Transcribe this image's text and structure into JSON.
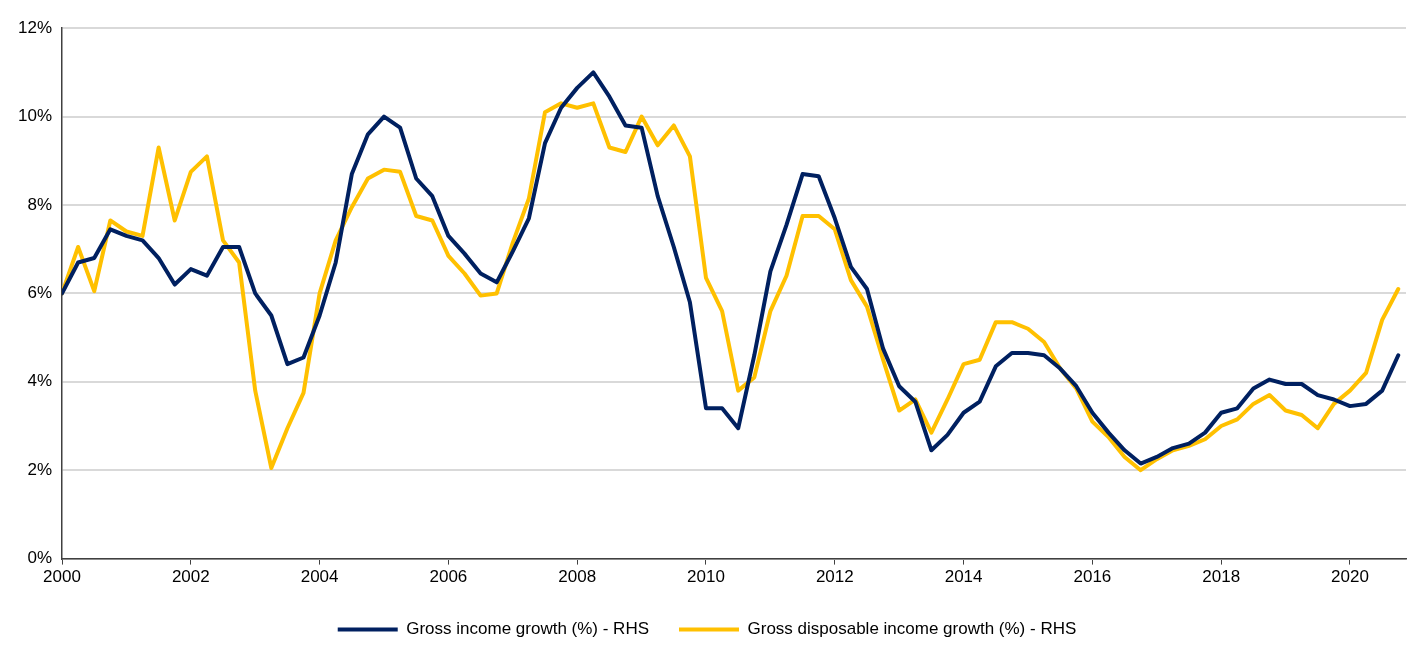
{
  "chart_data": {
    "type": "line",
    "x": [
      2000,
      2000.25,
      2000.5,
      2000.75,
      2001,
      2001.25,
      2001.5,
      2001.75,
      2002,
      2002.25,
      2002.5,
      2002.75,
      2003,
      2003.25,
      2003.5,
      2003.75,
      2004,
      2004.25,
      2004.5,
      2004.75,
      2005,
      2005.25,
      2005.5,
      2005.75,
      2006,
      2006.25,
      2006.5,
      2006.75,
      2007,
      2007.25,
      2007.5,
      2007.75,
      2008,
      2008.25,
      2008.5,
      2008.75,
      2009,
      2009.25,
      2009.5,
      2009.75,
      2010,
      2010.25,
      2010.5,
      2010.75,
      2011,
      2011.25,
      2011.5,
      2011.75,
      2012,
      2012.25,
      2012.5,
      2012.75,
      2013,
      2013.25,
      2013.5,
      2013.75,
      2014,
      2014.25,
      2014.5,
      2014.75,
      2015,
      2015.25,
      2015.5,
      2015.75,
      2016,
      2016.25,
      2016.5,
      2016.75,
      2017,
      2017.25,
      2017.5,
      2017.75,
      2018,
      2018.25,
      2018.5,
      2018.75,
      2019,
      2019.25,
      2019.5,
      2019.75,
      2020,
      2020.25,
      2020.5,
      2020.75
    ],
    "series": [
      {
        "name": "Gross income growth (%) - RHS",
        "color": "#002060",
        "values": [
          6.0,
          6.7,
          6.8,
          7.45,
          7.3,
          7.2,
          6.8,
          6.2,
          6.55,
          6.4,
          7.05,
          7.05,
          6.0,
          5.5,
          4.4,
          4.55,
          5.5,
          6.7,
          8.7,
          9.6,
          10.0,
          9.75,
          8.6,
          8.2,
          7.3,
          6.9,
          6.45,
          6.25,
          6.95,
          7.7,
          9.4,
          10.2,
          10.65,
          11.0,
          10.45,
          9.8,
          9.75,
          8.2,
          7.05,
          5.8,
          3.4,
          3.4,
          2.95,
          4.6,
          6.5,
          7.55,
          8.7,
          8.65,
          7.7,
          6.6,
          6.1,
          4.75,
          3.9,
          3.55,
          2.45,
          2.8,
          3.3,
          3.55,
          4.35,
          4.65,
          4.65,
          4.6,
          4.3,
          3.9,
          3.3,
          2.85,
          2.45,
          2.15,
          2.3,
          2.5,
          2.6,
          2.85,
          3.3,
          3.4,
          3.85,
          4.05,
          3.95,
          3.95,
          3.7,
          3.6,
          3.45,
          3.5,
          3.8,
          4.6
        ]
      },
      {
        "name": "Gross disposable income growth (%) - RHS",
        "color": "#ffc000",
        "values": [
          6.0,
          7.05,
          6.05,
          7.65,
          7.4,
          7.3,
          9.3,
          7.65,
          8.75,
          9.1,
          7.2,
          6.7,
          3.8,
          2.05,
          2.95,
          3.75,
          6.0,
          7.2,
          7.95,
          8.6,
          8.8,
          8.75,
          7.75,
          7.65,
          6.85,
          6.45,
          5.95,
          6.0,
          7.15,
          8.15,
          10.1,
          10.3,
          10.2,
          10.3,
          9.3,
          9.2,
          10.0,
          9.35,
          9.8,
          9.1,
          6.35,
          5.6,
          3.8,
          4.1,
          5.6,
          6.4,
          7.75,
          7.75,
          7.45,
          6.3,
          5.7,
          4.5,
          3.35,
          3.6,
          2.85,
          3.6,
          4.4,
          4.5,
          5.35,
          5.35,
          5.2,
          4.9,
          4.3,
          3.85,
          3.1,
          2.75,
          2.3,
          2.0,
          2.25,
          2.45,
          2.55,
          2.7,
          3.0,
          3.15,
          3.5,
          3.7,
          3.35,
          3.25,
          2.95,
          3.5,
          3.8,
          4.2,
          5.4,
          6.1
        ]
      }
    ],
    "xlim": [
      2000,
      2020.87
    ],
    "xticks": [
      2000,
      2002,
      2004,
      2006,
      2008,
      2010,
      2012,
      2014,
      2016,
      2018,
      2020
    ],
    "ylim": [
      0,
      12
    ],
    "yticks": [
      {
        "value": 0,
        "label": "0%"
      },
      {
        "value": 2,
        "label": "2%"
      },
      {
        "value": 4,
        "label": "4%"
      },
      {
        "value": 6,
        "label": "6%"
      },
      {
        "value": 8,
        "label": "8%"
      },
      {
        "value": 10,
        "label": "10%"
      },
      {
        "value": 12,
        "label": "12%"
      }
    ],
    "grid": "y",
    "legend": "bottom",
    "marker": "none",
    "line_style": "solid"
  }
}
